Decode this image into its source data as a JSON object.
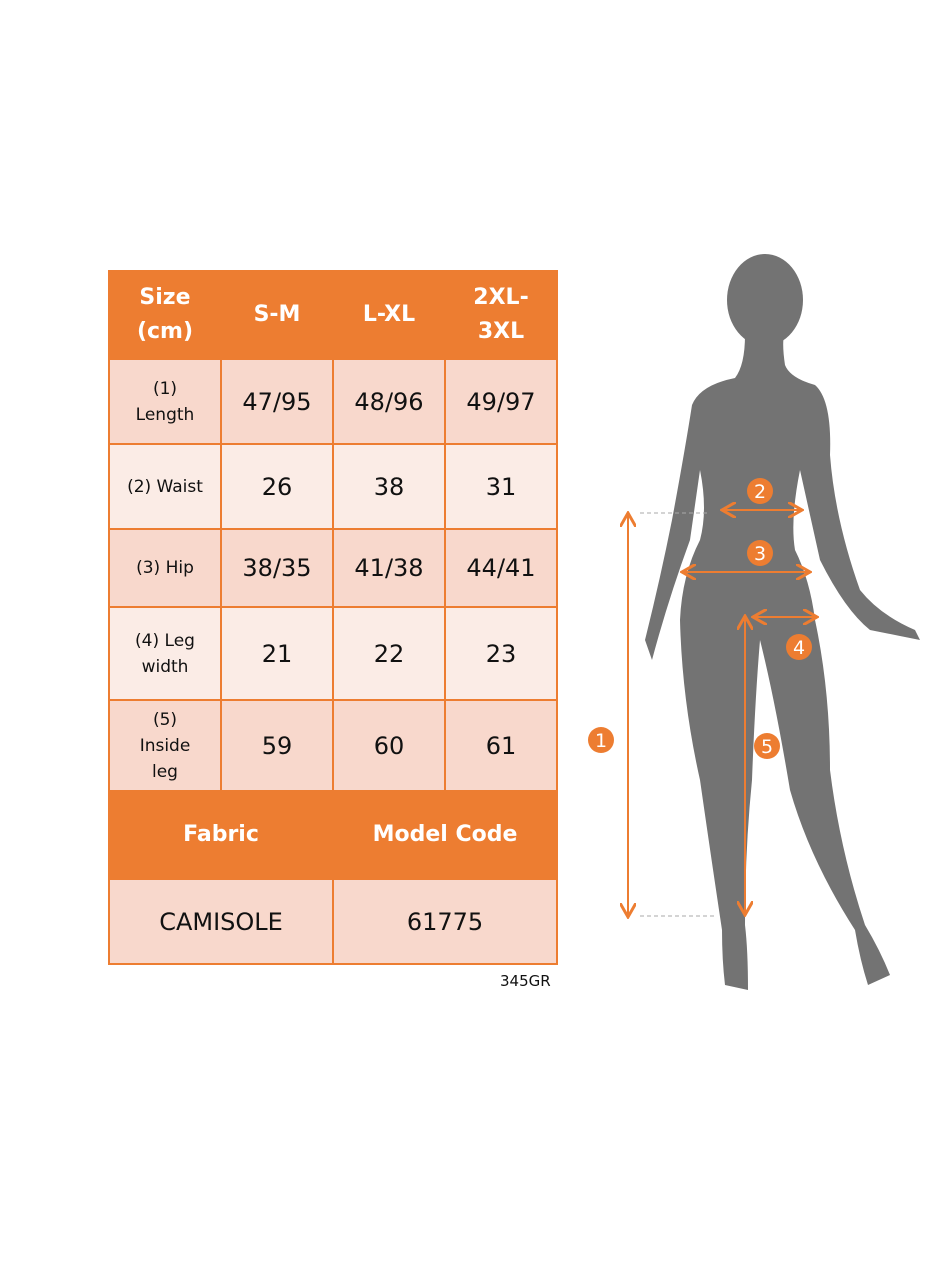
{
  "table": {
    "header": [
      "Size\n(cm)",
      "S-M",
      "L-XL",
      "2XL-\n3XL"
    ],
    "rows": [
      {
        "label": "(1)\nLength",
        "values": [
          "47/95",
          "48/96",
          "49/97"
        ]
      },
      {
        "label": "(2) Waist",
        "values": [
          "26",
          "38",
          "31"
        ]
      },
      {
        "label": "(3) Hip",
        "values": [
          "38/35",
          "41/38",
          "44/41"
        ]
      },
      {
        "label": "(4) Leg\nwidth",
        "values": [
          "21",
          "22",
          "23"
        ]
      },
      {
        "label": "(5)\nInside\nleg",
        "values": [
          "59",
          "60",
          "61"
        ]
      }
    ],
    "footer_header": [
      "Fabric",
      "Model Code"
    ],
    "footer_values": [
      "CAMISOLE",
      "61775"
    ]
  },
  "product_code": "345GR",
  "diagram": {
    "markers": [
      "1",
      "2",
      "3",
      "4",
      "5"
    ],
    "accent_color": "#ED7D31",
    "silhouette_color": "#737373"
  }
}
